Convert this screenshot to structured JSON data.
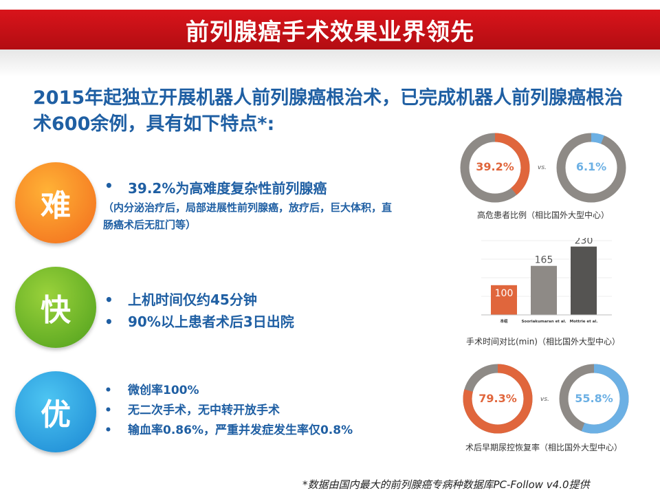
{
  "banner": {
    "title": "前列腺癌手术效果业界领先"
  },
  "intro": {
    "text": "2015年起独立开展机器人前列腺癌根治术，已完成机器人前列腺癌根治术600余例，具有如下特点*:"
  },
  "features": [
    {
      "badge": "难",
      "items": [
        "39.2%为高难度复杂性前列腺癌"
      ],
      "note": "（内分泌治疗后，局部进展性前列腺癌，放疗后，巨大体积，直肠癌术后无肛门等）"
    },
    {
      "badge": "快",
      "items": [
        "上机时间仅约45分钟",
        "90%以上患者术后3日出院"
      ]
    },
    {
      "badge": "优",
      "items": [
        "微创率100%",
        "无二次手术，无中转开放手术",
        "输血率0.86%，严重并发症发生率仅0.8%"
      ]
    }
  ],
  "bullet_symbol": "•",
  "charts": {
    "high_risk": {
      "left_label": "39.2%",
      "left_value": 39.2,
      "left_color": "#e0663c",
      "vs": "vs.",
      "right_label": "6.1%",
      "right_value": 6.1,
      "right_color": "#6cb0e4",
      "ring_color": "#8e8a86",
      "caption": "高危患者比例（相比国外大型中心）"
    },
    "op_time": {
      "caption": "手术时间对比(min)（相比国外大型中心）"
    },
    "continence": {
      "left_label": "79.3%",
      "left_value": 79.3,
      "left_color": "#e0663c",
      "vs": "vs.",
      "right_label": "55.8%",
      "right_value": 55.8,
      "right_color": "#6cb0e4",
      "ring_color": "#8e8a86",
      "caption": "术后早期尿控恢复率（相比国外大型中心）"
    }
  },
  "chart_data": {
    "type": "bar",
    "categories": [
      "本组",
      "Sooriakumaran et al.",
      "Mottrie et al."
    ],
    "values": [
      100,
      165,
      230
    ],
    "colors": [
      "#e0663c",
      "#8e8a86",
      "#555452"
    ],
    "xlabel": "",
    "ylabel": "",
    "ylim": [
      0,
      250
    ],
    "title": "手术时间对比(min)"
  },
  "footnote": "*数据由国内最大的前列腺癌专病种数据库PC-Follow v4.0提供"
}
